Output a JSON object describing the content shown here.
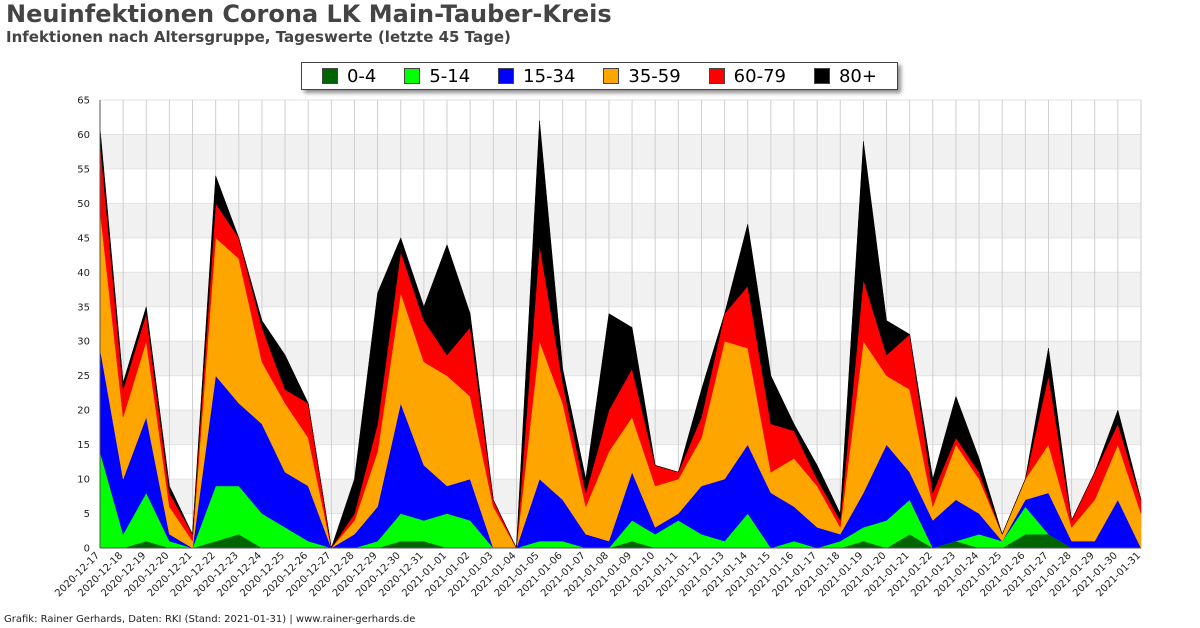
{
  "title": "Neuinfektionen Corona LK Main-Tauber-Kreis",
  "subtitle": "Infektionen nach Altersgruppe, Tageswerte (letzte 45 Tage)",
  "footer": "Grafik: Rainer Gerhards, Daten: RKI (Stand: 2021-01-31) | www.rainer-gerhards.de",
  "chart_data": {
    "type": "area",
    "stacked": true,
    "title": "Neuinfektionen Corona LK Main-Tauber-Kreis",
    "subtitle": "Infektionen nach Altersgruppe, Tageswerte (letzte 45 Tage)",
    "xlabel": "",
    "ylabel": "",
    "ylim": [
      0,
      65
    ],
    "yticks": [
      0,
      5,
      10,
      15,
      20,
      25,
      30,
      35,
      40,
      45,
      50,
      55,
      60,
      65
    ],
    "grid": true,
    "legend_position": "top-center",
    "categories": [
      "2020-12-17",
      "2020-12-18",
      "2020-12-19",
      "2020-12-20",
      "2020-12-21",
      "2020-12-22",
      "2020-12-23",
      "2020-12-24",
      "2020-12-25",
      "2020-12-26",
      "2020-12-27",
      "2020-12-28",
      "2020-12-29",
      "2020-12-30",
      "2020-12-31",
      "2021-01-01",
      "2021-01-02",
      "2021-01-03",
      "2021-01-04",
      "2021-01-05",
      "2021-01-06",
      "2021-01-07",
      "2021-01-08",
      "2021-01-09",
      "2021-01-10",
      "2021-01-11",
      "2021-01-12",
      "2021-01-13",
      "2021-01-14",
      "2021-01-15",
      "2021-01-16",
      "2021-01-17",
      "2021-01-18",
      "2021-01-19",
      "2021-01-20",
      "2021-01-21",
      "2021-01-22",
      "2021-01-23",
      "2021-01-24",
      "2021-01-25",
      "2021-01-26",
      "2021-01-27",
      "2021-01-28",
      "2021-01-29",
      "2021-01-30",
      "2021-01-31"
    ],
    "series": [
      {
        "name": "0-4",
        "color": "#006400",
        "values": [
          0,
          0,
          1,
          0,
          0,
          1,
          2,
          0,
          0,
          0,
          0,
          0,
          0,
          1,
          1,
          0,
          0,
          0,
          0,
          0,
          0,
          0,
          0,
          1,
          0,
          0,
          0,
          0,
          0,
          0,
          0,
          0,
          0,
          1,
          0,
          2,
          0,
          1,
          0,
          0,
          2,
          2,
          0,
          0,
          0,
          0
        ]
      },
      {
        "name": "5-14",
        "color": "#00ff00",
        "values": [
          14,
          2,
          7,
          1,
          0,
          8,
          7,
          5,
          3,
          1,
          0,
          0,
          1,
          4,
          3,
          5,
          4,
          0,
          0,
          1,
          1,
          0,
          0,
          3,
          2,
          4,
          2,
          1,
          5,
          0,
          1,
          0,
          1,
          2,
          4,
          5,
          0,
          0,
          2,
          1,
          4,
          0,
          0,
          0,
          0,
          0
        ]
      },
      {
        "name": "15-34",
        "color": "#0000ff",
        "values": [
          15,
          8,
          11,
          1,
          0,
          16,
          12,
          13,
          8,
          8,
          0,
          2,
          5,
          16,
          8,
          4,
          6,
          0,
          0,
          9,
          6,
          2,
          1,
          7,
          1,
          1,
          7,
          9,
          10,
          8,
          5,
          3,
          1,
          5,
          11,
          4,
          4,
          6,
          3,
          0,
          1,
          6,
          1,
          1,
          7,
          0
        ]
      },
      {
        "name": "35-59",
        "color": "#ffa500",
        "values": [
          20,
          9,
          11,
          4,
          1,
          20,
          21,
          9,
          10,
          7,
          0,
          2,
          8,
          16,
          15,
          16,
          12,
          6,
          0,
          20,
          14,
          4,
          13,
          8,
          6,
          5,
          7,
          20,
          14,
          3,
          7,
          6,
          1,
          22,
          10,
          12,
          2,
          8,
          5,
          1,
          3,
          7,
          2,
          6,
          8,
          5
        ]
      },
      {
        "name": "60-79",
        "color": "#ff0000",
        "values": [
          10,
          4,
          4,
          2,
          1,
          5,
          3,
          5,
          2,
          5,
          0,
          1,
          4,
          6,
          6,
          3,
          10,
          1,
          0,
          14,
          3,
          2,
          6,
          7,
          3,
          1,
          3,
          4,
          9,
          7,
          4,
          1,
          1,
          9,
          3,
          8,
          2,
          1,
          1,
          0,
          0,
          10,
          1,
          4,
          3,
          2
        ]
      },
      {
        "name": "80+",
        "color": "#000000",
        "values": [
          2,
          1,
          1,
          1,
          0,
          4,
          0,
          1,
          5,
          0,
          0,
          5,
          19,
          2,
          2,
          16,
          2,
          0,
          0,
          18,
          2,
          2,
          14,
          6,
          0,
          0,
          4,
          0,
          9,
          7,
          1,
          2,
          1,
          20,
          5,
          0,
          2,
          6,
          2,
          0,
          0,
          4,
          0,
          0,
          2,
          0
        ]
      }
    ]
  }
}
